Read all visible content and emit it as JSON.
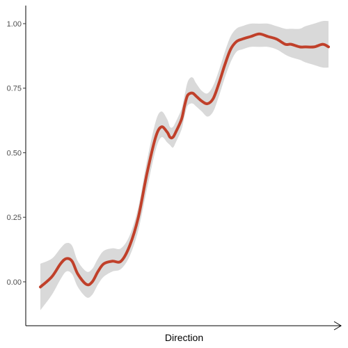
{
  "chart_data": {
    "type": "line",
    "xlabel": "Direction",
    "ylabel": "",
    "x_ticks_shown": false,
    "grid": false,
    "xlim": [
      0,
      1
    ],
    "ylim": [
      -0.17,
      1.07
    ],
    "y_ticks": [
      0.0,
      0.25,
      0.5,
      0.75,
      1.0
    ],
    "y_tick_labels": [
      "0.00",
      "0.25",
      "0.50",
      "0.75",
      "1.00"
    ],
    "colors": {
      "line": "#C0402A",
      "band": "#D9D9D9",
      "axis": "#000000"
    },
    "series": [
      {
        "x": [
          0.0,
          0.04,
          0.07,
          0.09,
          0.11,
          0.13,
          0.16,
          0.18,
          0.2,
          0.22,
          0.25,
          0.28,
          0.31,
          0.34,
          0.37,
          0.4,
          0.42,
          0.44,
          0.45,
          0.46,
          0.47,
          0.49,
          0.5,
          0.51,
          0.52,
          0.53,
          0.54,
          0.56,
          0.58,
          0.6,
          0.62,
          0.64,
          0.66,
          0.68,
          0.7,
          0.73,
          0.76,
          0.79,
          0.82,
          0.85,
          0.87,
          0.9,
          0.92,
          0.95,
          0.98,
          1.0
        ],
        "y": [
          -0.02,
          0.02,
          0.07,
          0.09,
          0.08,
          0.03,
          -0.01,
          0.0,
          0.04,
          0.07,
          0.08,
          0.08,
          0.14,
          0.25,
          0.42,
          0.56,
          0.6,
          0.58,
          0.56,
          0.56,
          0.58,
          0.63,
          0.68,
          0.72,
          0.73,
          0.73,
          0.72,
          0.7,
          0.69,
          0.71,
          0.77,
          0.84,
          0.9,
          0.93,
          0.94,
          0.95,
          0.96,
          0.95,
          0.94,
          0.92,
          0.92,
          0.91,
          0.91,
          0.91,
          0.92,
          0.91
        ],
        "lower": [
          -0.11,
          -0.05,
          0.01,
          0.04,
          0.03,
          -0.02,
          -0.06,
          -0.05,
          -0.01,
          0.02,
          0.04,
          0.05,
          0.1,
          0.2,
          0.36,
          0.51,
          0.56,
          0.54,
          0.53,
          0.52,
          0.54,
          0.59,
          0.64,
          0.68,
          0.69,
          0.69,
          0.68,
          0.66,
          0.64,
          0.66,
          0.72,
          0.79,
          0.85,
          0.89,
          0.9,
          0.91,
          0.91,
          0.91,
          0.9,
          0.88,
          0.87,
          0.86,
          0.85,
          0.84,
          0.83,
          0.83
        ],
        "upper": [
          0.07,
          0.09,
          0.13,
          0.15,
          0.14,
          0.08,
          0.04,
          0.05,
          0.09,
          0.12,
          0.13,
          0.13,
          0.18,
          0.29,
          0.47,
          0.62,
          0.66,
          0.63,
          0.6,
          0.6,
          0.62,
          0.67,
          0.72,
          0.77,
          0.79,
          0.79,
          0.77,
          0.74,
          0.73,
          0.76,
          0.82,
          0.89,
          0.95,
          0.98,
          0.99,
          1.0,
          1.0,
          1.0,
          0.99,
          0.98,
          0.98,
          0.98,
          0.99,
          1.0,
          1.01,
          1.01
        ]
      }
    ]
  }
}
